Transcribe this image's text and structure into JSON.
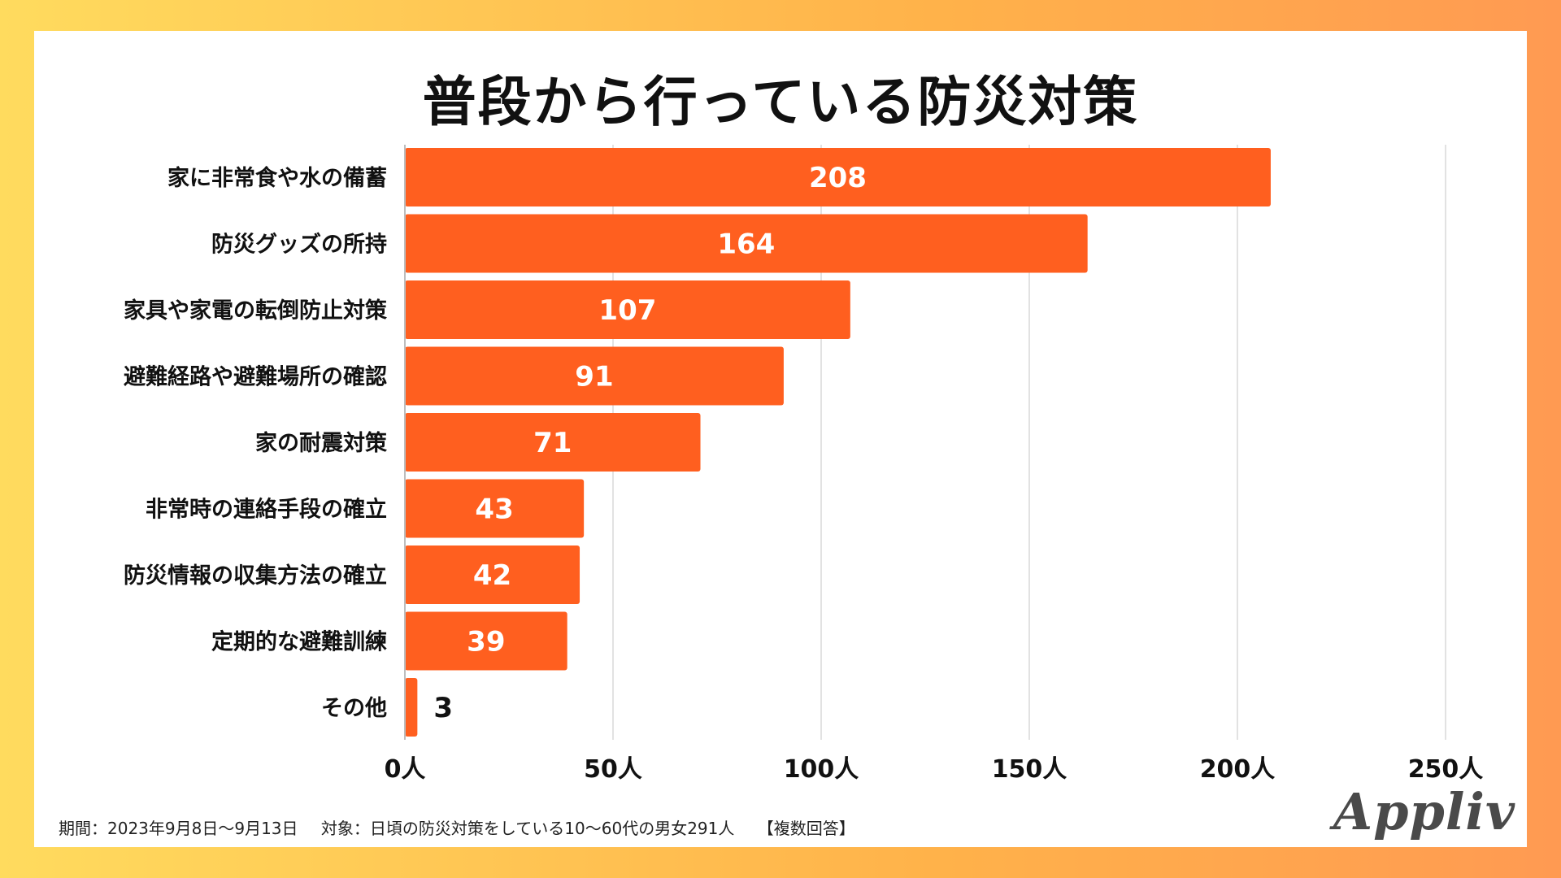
{
  "chart_data": {
    "type": "bar",
    "orientation": "horizontal",
    "title": "普段から行っている防災対策",
    "categories": [
      "家に非常食や水の備蓄",
      "防災グッズの所持",
      "家具や家電の転倒防止対策",
      "避難経路や避難場所の確認",
      "家の耐震対策",
      "非常時の連絡手段の確立",
      "防災情報の収集方法の確立",
      "定期的な避難訓練",
      "その他"
    ],
    "values": [
      208,
      164,
      107,
      91,
      71,
      43,
      42,
      39,
      3
    ],
    "value_labels": [
      "208",
      "164",
      "107",
      "91",
      "71",
      "43",
      "42",
      "39",
      "3"
    ],
    "xlim": [
      0,
      250
    ],
    "xticks": [
      0,
      50,
      100,
      150,
      200,
      250
    ],
    "xtick_labels": [
      "0人",
      "50人",
      "100人",
      "150人",
      "200人",
      "250人"
    ],
    "grid": true,
    "bar_color": "#ff5f1f"
  },
  "footer": {
    "period": "期間：2023年9月8日〜9月13日",
    "target": "対象：日頃の防災対策をしている10〜60代の男女291人",
    "note": "【複数回答】"
  },
  "logo": {
    "text": "Appliv"
  }
}
